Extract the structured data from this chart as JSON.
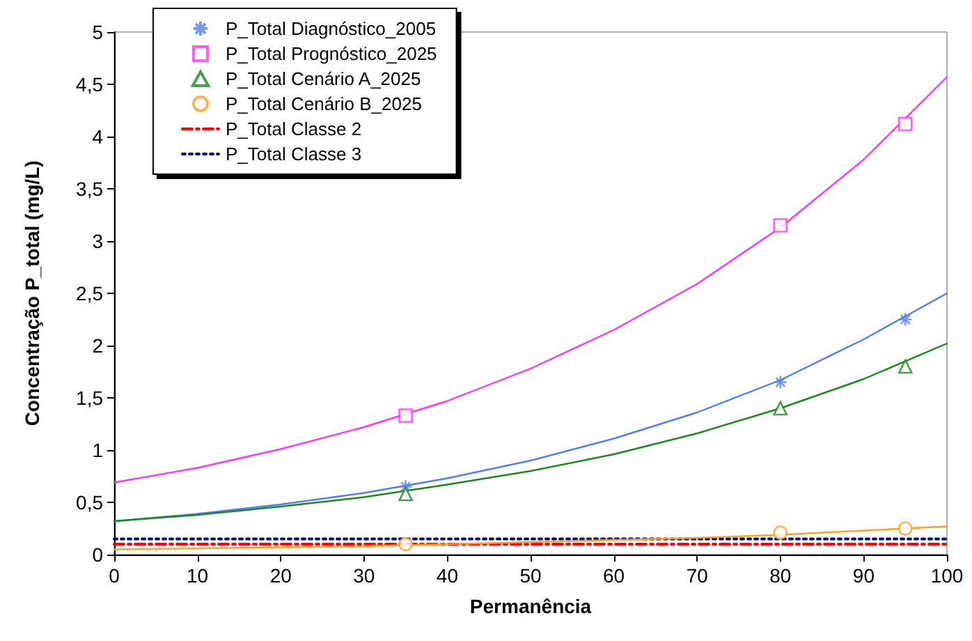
{
  "chart_data": {
    "type": "scatter",
    "xlabel": "Permanência",
    "ylabel": "Concentração P_total (mg/L)",
    "xlim": [
      0,
      100
    ],
    "xticks": [
      0,
      10,
      20,
      30,
      40,
      50,
      60,
      70,
      80,
      90,
      100
    ],
    "ylim": [
      0,
      5
    ],
    "yticks": [
      0,
      {
        "value": 0.5,
        "label": "0,5"
      },
      1,
      {
        "value": 1.5,
        "label": "1,5"
      },
      2,
      {
        "value": 2.5,
        "label": "2,5"
      },
      3,
      {
        "value": 3.5,
        "label": "3,5"
      },
      4,
      {
        "value": 4.5,
        "label": "4,5"
      },
      5
    ],
    "grid": false,
    "legend": "top left",
    "series": [
      {
        "name": "P_Total Diagnóstico_2005",
        "marker": "cross",
        "color": "#4f7ff0",
        "x": [
          35,
          80,
          95
        ],
        "values": [
          0.65,
          1.65,
          2.25
        ]
      },
      {
        "name": "P_Total Prognóstico_2025",
        "marker": "square",
        "color": "#ff33ff",
        "x": [
          35,
          80,
          95
        ],
        "values": [
          1.33,
          3.15,
          4.12
        ]
      },
      {
        "name": "P_Total Cenário A_2025",
        "marker": "triangle",
        "color": "#1a8a1a",
        "x": [
          35,
          80,
          95
        ],
        "values": [
          0.58,
          1.4,
          1.8
        ]
      },
      {
        "name": "P_Total Cenário B_2025",
        "marker": "circle",
        "color": "#ffa020",
        "x": [
          35,
          80,
          95
        ],
        "values": [
          0.1,
          0.21,
          0.25
        ]
      },
      {
        "name": "P_Total Classe 2",
        "type": "line",
        "marker": "none",
        "line_style": "dashdot",
        "color": "#ff0000",
        "x": [
          0,
          100
        ],
        "values": [
          0.1,
          0.1
        ]
      },
      {
        "name": "P_Total Classe 3",
        "type": "line",
        "marker": "none",
        "line_style": "dotted",
        "color": "#000080",
        "x": [
          0,
          100
        ],
        "values": [
          0.15,
          0.15
        ]
      },
      {
        "type": "line",
        "marker": "none",
        "color": "#4f7ff0",
        "x": [
          0,
          10,
          20,
          30,
          40,
          50,
          60,
          70,
          80,
          90,
          100
        ],
        "values": [
          0.32,
          0.39,
          0.48,
          0.59,
          0.73,
          0.9,
          1.11,
          1.36,
          1.67,
          2.06,
          2.5
        ]
      },
      {
        "type": "line",
        "marker": "none",
        "color": "#ff33ff",
        "x": [
          0,
          10,
          20,
          30,
          40,
          50,
          60,
          70,
          80,
          90,
          100
        ],
        "values": [
          0.69,
          0.83,
          1.01,
          1.22,
          1.47,
          1.78,
          2.15,
          2.59,
          3.13,
          3.78,
          4.57
        ]
      },
      {
        "type": "line",
        "marker": "none",
        "color": "#1a8a1a",
        "x": [
          0,
          10,
          20,
          30,
          40,
          50,
          60,
          70,
          80,
          90,
          100
        ],
        "values": [
          0.32,
          0.38,
          0.46,
          0.55,
          0.67,
          0.8,
          0.96,
          1.16,
          1.4,
          1.68,
          2.02
        ]
      },
      {
        "type": "line",
        "marker": "none",
        "color": "#ffa020",
        "x": [
          0,
          10,
          20,
          30,
          40,
          50,
          60,
          70,
          80,
          90,
          100
        ],
        "values": [
          0.05,
          0.06,
          0.07,
          0.08,
          0.1,
          0.12,
          0.14,
          0.16,
          0.19,
          0.23,
          0.27
        ]
      }
    ]
  }
}
